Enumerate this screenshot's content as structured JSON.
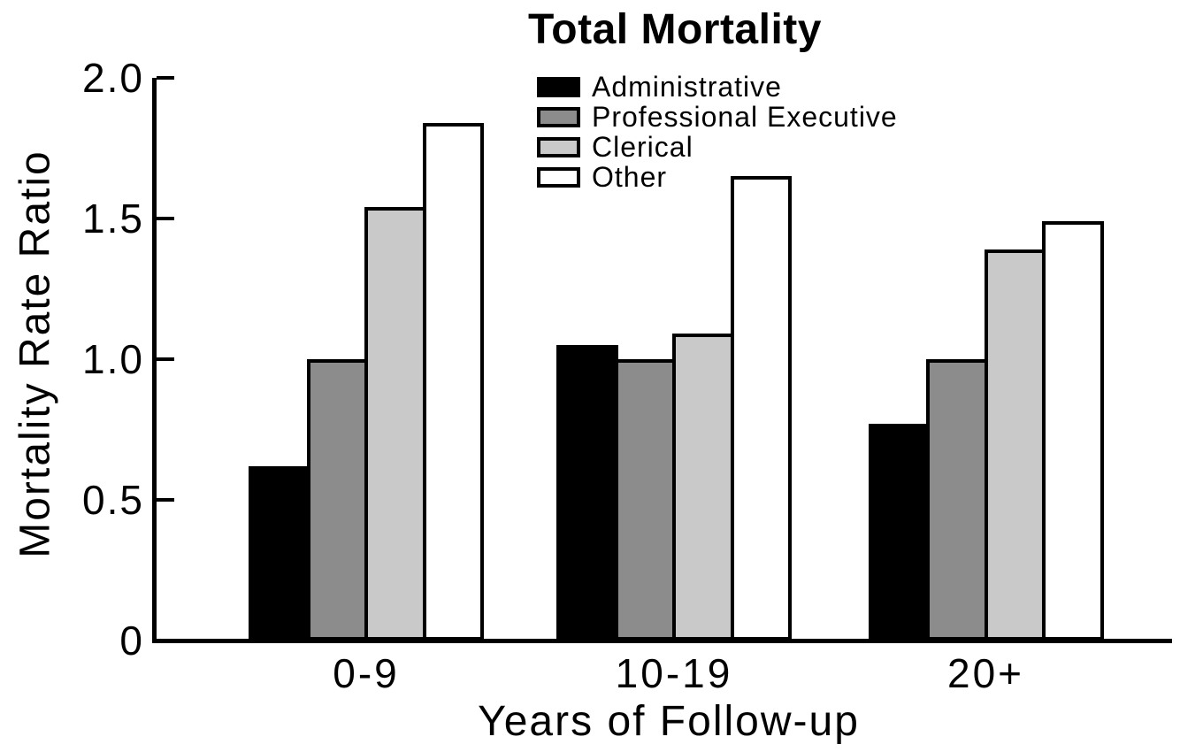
{
  "figure": {
    "title": "Total Mortality"
  },
  "chart_data": {
    "type": "bar",
    "title": "Total Mortality",
    "categories": [
      "0-9",
      "10-19",
      "20+"
    ],
    "series": [
      {
        "name": "Administrative",
        "color": "#000000",
        "values": [
          0.62,
          1.05,
          0.77
        ]
      },
      {
        "name": "Professional Executive",
        "color": "#8c8c8c",
        "values": [
          1.0,
          1.0,
          1.0
        ]
      },
      {
        "name": "Clerical",
        "color": "#c9c9c9",
        "values": [
          1.54,
          1.09,
          1.39
        ]
      },
      {
        "name": "Other",
        "color": "#ffffff",
        "values": [
          1.84,
          1.65,
          1.49
        ]
      }
    ],
    "xlabel": "Years of Follow-up",
    "ylabel": "Mortality Rate Ratio",
    "ylim": [
      0,
      2.0
    ],
    "yticks": [
      0,
      0.5,
      1.0,
      1.5,
      2.0
    ],
    "ytick_labels": [
      "0",
      "0.5",
      "1.0",
      "1.5",
      "2.0"
    ],
    "grid": false,
    "legend_position": "top-center-inside",
    "bar_border_color": "#000000",
    "axis_color": "#000000",
    "background": "#ffffff"
  }
}
